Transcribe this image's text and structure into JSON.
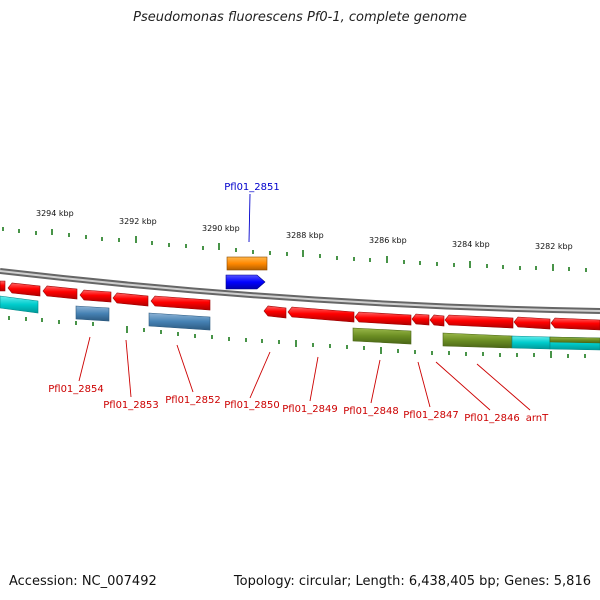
{
  "title": "Pseudomonas fluorescens Pf0-1, complete genome",
  "footer": {
    "accession": "Accession: NC_007492",
    "stats": "Topology: circular; Length: 6,438,405 bp; Genes: 5,816"
  },
  "scale_labels": [
    "3294 kbp",
    "3292 kbp",
    "3290 kbp",
    "3288 kbp",
    "3286 kbp",
    "3284 kbp",
    "3282 kbp"
  ],
  "gene_labels": {
    "g2851": "Pfl01_2851",
    "g2854": "Pfl01_2854",
    "g2853": "Pfl01_2853",
    "g2852": "Pfl01_2852",
    "g2850": "Pfl01_2850",
    "g2849": "Pfl01_2849",
    "g2848": "Pfl01_2848",
    "g2847": "Pfl01_2847",
    "g2846": "Pfl01_2846",
    "arnT": "arnT"
  },
  "colors": {
    "gene_red": "#ff0000",
    "label_red": "#cc0000",
    "label_blue": "#0000cc",
    "orange": "#ff8800",
    "blue": "#0000ff",
    "steel": "#4682b4",
    "olive": "#6b8e23",
    "cyan": "#00cccc",
    "tick_green": "#1a7a1a",
    "backbone": "#888888"
  }
}
